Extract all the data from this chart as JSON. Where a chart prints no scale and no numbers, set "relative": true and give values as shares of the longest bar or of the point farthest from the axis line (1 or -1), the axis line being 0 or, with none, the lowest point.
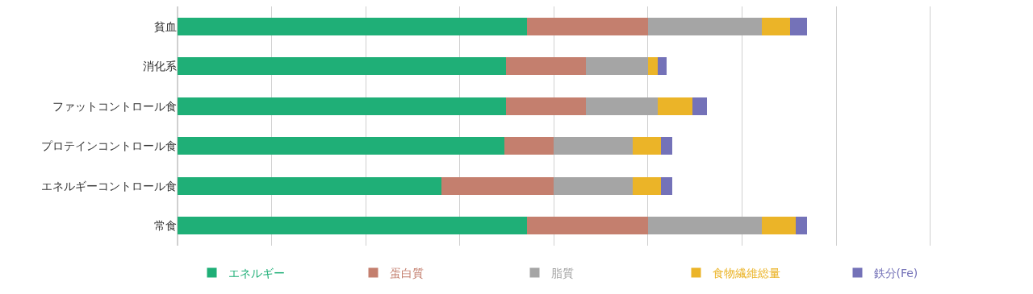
{
  "chart_data": {
    "type": "bar",
    "orientation": "horizontal",
    "stacked": true,
    "relative": true,
    "grid": "x",
    "legend": "bottom",
    "categories": [
      "貧血",
      "消化系",
      "ファットコントロール食",
      "プロテインコントロール食",
      "エネルギーコントロール食",
      "常食"
    ],
    "series": [
      {
        "name": "エネルギー",
        "color": "#1faf77",
        "values": [
          0.555,
          0.521,
          0.521,
          0.519,
          0.419,
          0.555
        ]
      },
      {
        "name": "蛋白質",
        "color": "#c47f6e",
        "values": [
          0.192,
          0.127,
          0.127,
          0.078,
          0.178,
          0.192
        ]
      },
      {
        "name": "脂質",
        "color": "#a5a5a5",
        "values": [
          0.181,
          0.099,
          0.114,
          0.126,
          0.126,
          0.181
        ]
      },
      {
        "name": "食物繊維総量",
        "color": "#ebb428",
        "values": [
          0.045,
          0.016,
          0.056,
          0.045,
          0.045,
          0.053
        ]
      },
      {
        "name": "鉄分(Fe)",
        "color": "#7472b8",
        "values": [
          0.027,
          0.014,
          0.022,
          0.017,
          0.017,
          0.019
        ]
      }
    ]
  }
}
